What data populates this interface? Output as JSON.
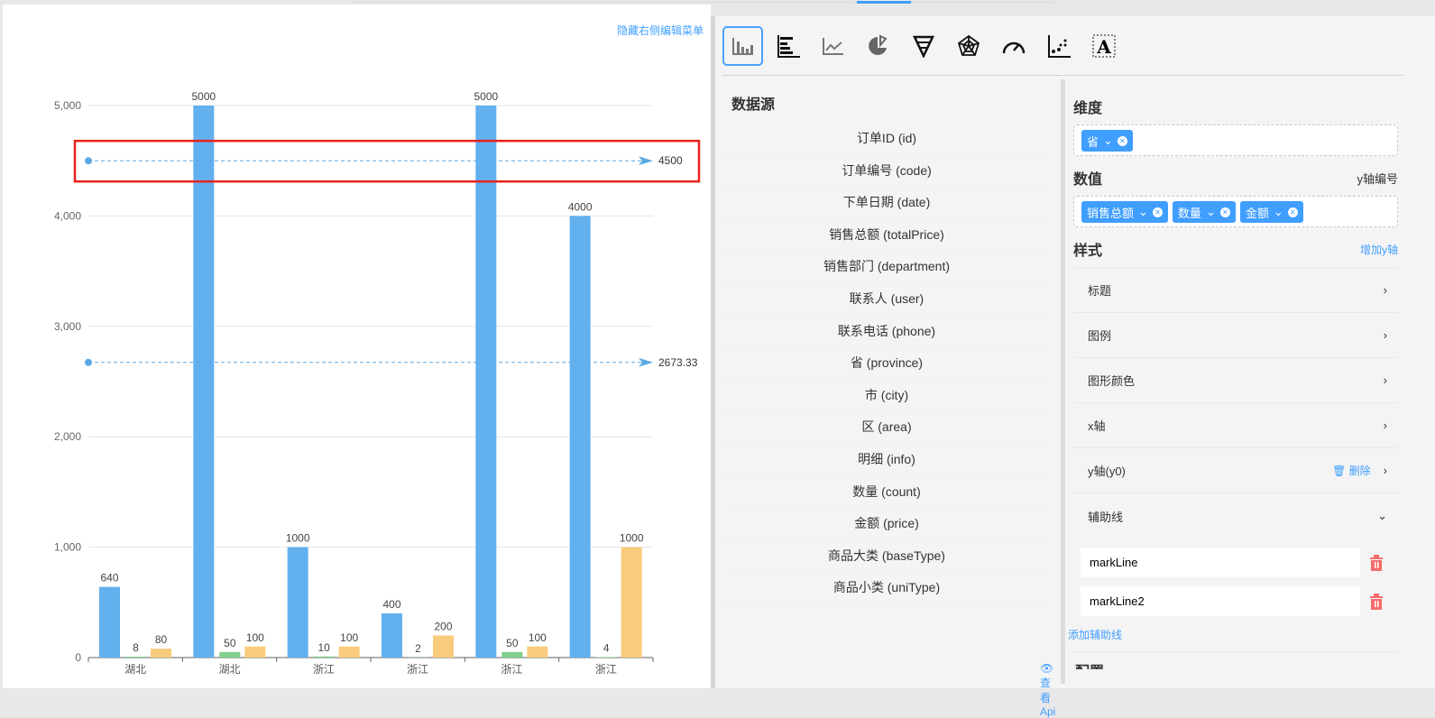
{
  "left_panel": {
    "hide_menu_link": "隐藏右侧编辑菜单"
  },
  "chart_data": {
    "type": "bar",
    "categories": [
      "湖北",
      "湖北",
      "浙江",
      "浙江",
      "浙江",
      "浙江"
    ],
    "series": [
      {
        "values": [
          640,
          5000,
          1000,
          400,
          5000,
          4000
        ],
        "color": "#62b0ee"
      },
      {
        "values": [
          8,
          50,
          10,
          2,
          50,
          4
        ],
        "color": "#7ed08a"
      },
      {
        "values": [
          80,
          100,
          100,
          200,
          100,
          1000
        ],
        "color": "#f9cb7c"
      }
    ],
    "ylim": [
      0,
      5000
    ],
    "yticks": [
      "0",
      "1,000",
      "2,000",
      "3,000",
      "4,000",
      "5,000"
    ],
    "grid": true,
    "mark_lines": [
      {
        "value": 4500,
        "label": "4500",
        "highlighted": true
      },
      {
        "value": 2673.33,
        "label": "2673.33",
        "highlighted": false
      }
    ],
    "highlight_color": "#e8231a"
  },
  "chart_types": [
    {
      "icon": "bar-chart-icon",
      "active": true
    },
    {
      "icon": "horizontal-bar-chart-icon"
    },
    {
      "icon": "line-chart-icon"
    },
    {
      "icon": "pie-chart-icon"
    },
    {
      "icon": "funnel-chart-icon"
    },
    {
      "icon": "radar-chart-icon"
    },
    {
      "icon": "gauge-chart-icon"
    },
    {
      "icon": "scatter-chart-icon"
    },
    {
      "icon": "text-icon"
    }
  ],
  "datasource": {
    "title": "数据源",
    "fields": [
      "订单ID (id)",
      "订单编号 (code)",
      "下单日期 (date)",
      "销售总额 (totalPrice)",
      "销售部门 (department)",
      "联系人 (user)",
      "联系电话 (phone)",
      "省 (province)",
      "市 (city)",
      "区 (area)",
      "明细 (info)",
      "数量 (count)",
      "金额 (price)",
      "商品大类 (baseType)",
      "商品小类 (uniType)"
    ],
    "view_api": "查看Api"
  },
  "config": {
    "dimension_title": "维度",
    "dimension_tags": [
      "省"
    ],
    "value_title": "数值",
    "y_axis_number": "y轴编号",
    "value_tags": [
      "销售总额",
      "数量",
      "金额"
    ],
    "style_title": "样式",
    "add_y_axis": "增加y轴",
    "rows": [
      "标题",
      "图例",
      "图形颜色",
      "x轴"
    ],
    "y_axis_row": "y轴(y0)",
    "delete": "删除",
    "aux_line_row": "辅助线",
    "mark_lines": [
      "markLine",
      "markLine2"
    ],
    "add_aux_line": "添加辅助线",
    "next_section": "配置"
  },
  "colors": {
    "accent": "#409eff",
    "danger": "#f56c6c"
  }
}
